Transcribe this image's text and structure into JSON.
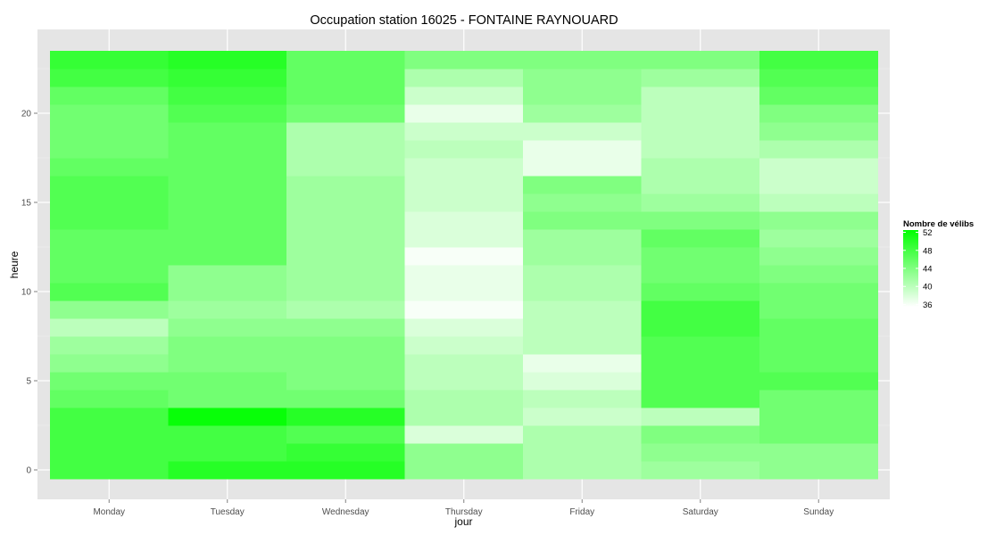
{
  "chart_data": {
    "type": "heatmap",
    "title": "Occupation station 16025 - FONTAINE RAYNOUARD",
    "xlabel": "jour",
    "ylabel": "heure",
    "x_categories": [
      "Monday",
      "Tuesday",
      "Wednesday",
      "Thursday",
      "Friday",
      "Saturday",
      "Sunday"
    ],
    "y_ticks": [
      0,
      5,
      10,
      15,
      20
    ],
    "y_range": [
      -0.5,
      23.5
    ],
    "grid": true,
    "legend": {
      "title": "Nombre de vélibs",
      "ticks": [
        52,
        48,
        44,
        40,
        36
      ],
      "range": [
        35.5,
        52.5
      ],
      "placement": "right",
      "color_low": "#ffffff",
      "color_high": "#00ff00"
    },
    "values_by_hour": [
      [
        48,
        50,
        50,
        43,
        41,
        42,
        43
      ],
      [
        48,
        48,
        49,
        43,
        41,
        43,
        43
      ],
      [
        48,
        48,
        47,
        38,
        41,
        44,
        45
      ],
      [
        48,
        52,
        50,
        41,
        39,
        40,
        45
      ],
      [
        46,
        45,
        45,
        41,
        40,
        47,
        45
      ],
      [
        45,
        45,
        44,
        40,
        38,
        47,
        47
      ],
      [
        43,
        44,
        44,
        40,
        37,
        47,
        46
      ],
      [
        42,
        44,
        44,
        39,
        40,
        47,
        46
      ],
      [
        40,
        43,
        43,
        38,
        40,
        48,
        46
      ],
      [
        43,
        42,
        41,
        36,
        40,
        48,
        45
      ],
      [
        47,
        43,
        42,
        37,
        41,
        46,
        45
      ],
      [
        46,
        43,
        42,
        37,
        41,
        45,
        44
      ],
      [
        46,
        46,
        42,
        36,
        42,
        45,
        43
      ],
      [
        46,
        46,
        42,
        38,
        42,
        46,
        42
      ],
      [
        47,
        46,
        42,
        38,
        44,
        44,
        43
      ],
      [
        47,
        46,
        42,
        39,
        43,
        42,
        40
      ],
      [
        47,
        46,
        42,
        39,
        44,
        41,
        39
      ],
      [
        46,
        46,
        41,
        39,
        37,
        41,
        39
      ],
      [
        45,
        46,
        41,
        40,
        37,
        40,
        41
      ],
      [
        45,
        46,
        41,
        39,
        39,
        40,
        43
      ],
      [
        45,
        47,
        45,
        37,
        42,
        40,
        44
      ],
      [
        46,
        48,
        46,
        39,
        43,
        40,
        46
      ],
      [
        48,
        49,
        46,
        41,
        43,
        42,
        47
      ],
      [
        49,
        50,
        46,
        44,
        44,
        44,
        48
      ]
    ]
  }
}
